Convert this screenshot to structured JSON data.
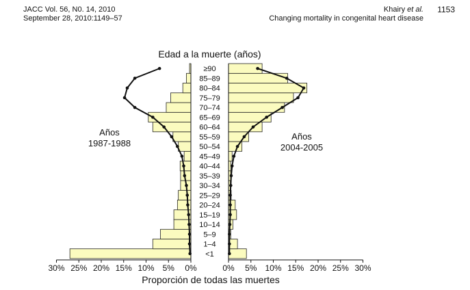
{
  "header": {
    "journal_line1": "JACC Vol. 56, N0. 14, 2010",
    "journal_line2": "September 28, 2010:1149–57",
    "authors_name": "Khairy",
    "authors_etal": "et al.",
    "article_title": "Changing mortality in congenital heart disease",
    "page_number": "1153"
  },
  "chart_data": {
    "type": "bar",
    "orientation": "horizontal-population-pyramid",
    "title": "Edad a la muerte (años)",
    "xlabel": "Proporción de todas las muertes",
    "x_ticks_left": [
      "30%",
      "25%",
      "20%",
      "15%",
      "10%",
      "5%",
      "0%"
    ],
    "x_ticks_right": [
      "0%",
      "5%",
      "10%",
      "15%",
      "20%",
      "25%",
      "30%"
    ],
    "xlim_percent": [
      0,
      30
    ],
    "categories": [
      "<1",
      "1–4",
      "5–9",
      "10–14",
      "15–19",
      "20–24",
      "25–29",
      "30–34",
      "35–39",
      "40–44",
      "45–49",
      "50–54",
      "55–59",
      "60–64",
      "65–69",
      "70–74",
      "75–79",
      "80–84",
      "85–89",
      "≥90"
    ],
    "series": [
      {
        "name": "Años\n1987-1988",
        "side": "left",
        "values": [
          27.0,
          8.5,
          6.8,
          3.8,
          3.8,
          3.0,
          2.8,
          2.3,
          2.3,
          2.4,
          1.5,
          2.8,
          4.0,
          8.5,
          9.5,
          5.5,
          4.5,
          1.8,
          1.0,
          0.3
        ],
        "line_values": [
          0.2,
          0.3,
          0.3,
          0.4,
          0.5,
          0.7,
          0.8,
          1.0,
          1.4,
          1.6,
          2.0,
          3.0,
          4.3,
          6.0,
          8.5,
          12.5,
          14.8,
          14.2,
          12.5,
          7.0
        ]
      },
      {
        "name": "Años\n2004-2005",
        "side": "right",
        "values": [
          4.0,
          2.0,
          0.5,
          1.0,
          1.8,
          1.5,
          0.6,
          0.4,
          0.5,
          0.5,
          0.8,
          3.0,
          4.5,
          7.5,
          9.5,
          12.5,
          14.5,
          17.5,
          13.2,
          7.5
        ],
        "line_values": [
          0.2,
          0.2,
          0.2,
          0.3,
          0.4,
          0.4,
          0.4,
          0.5,
          0.6,
          0.8,
          1.2,
          2.0,
          3.5,
          5.5,
          8.5,
          12.0,
          15.5,
          16.8,
          13.0,
          6.5
        ]
      }
    ],
    "colors": {
      "bar_fill": "#fbfbbf",
      "bar_stroke": "#222222",
      "line": "#111111"
    }
  }
}
